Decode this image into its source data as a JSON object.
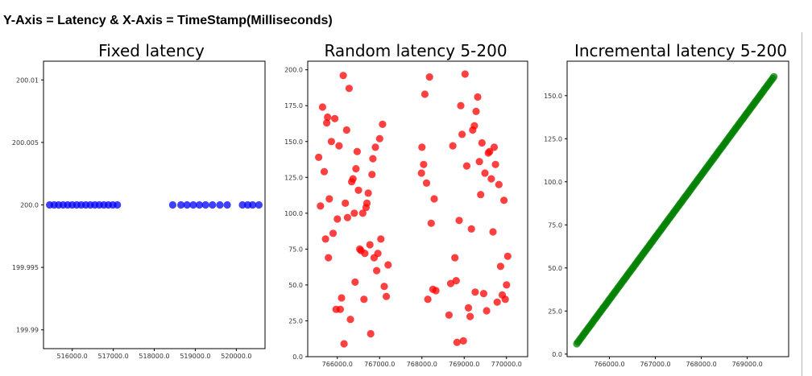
{
  "heading": "Y-Axis = Latency & X-Axis = TimeStamp(Milliseconds)",
  "chart_data": [
    {
      "type": "scatter",
      "title": "Fixed latency",
      "color": "#0000ff",
      "xlabel": "",
      "ylabel": "",
      "xlim": [
        515300,
        520700
      ],
      "ylim": [
        199.9885,
        200.0115
      ],
      "xticks": [
        516000,
        517000,
        518000,
        519000,
        520000
      ],
      "xtick_labels": [
        "516000.0",
        "517000.0",
        "518000.0",
        "519000.0",
        "520000.0"
      ],
      "yticks": [
        199.99,
        199.995,
        200.0,
        200.005,
        200.01
      ],
      "ytick_labels": [
        "199.99",
        "199.995",
        "200.0",
        "200.005",
        "200.01"
      ],
      "x": [
        515450,
        515560,
        515670,
        515780,
        515890,
        516000,
        516110,
        516220,
        516330,
        516440,
        516550,
        516660,
        516770,
        516880,
        516990,
        517100,
        518450,
        518650,
        518800,
        518950,
        519100,
        519250,
        519420,
        519600,
        519780,
        520150,
        520280,
        520400,
        520550
      ],
      "y": [
        200.0,
        200.0,
        200.0,
        200.0,
        200.0,
        200.0,
        200.0,
        200.0,
        200.0,
        200.0,
        200.0,
        200.0,
        200.0,
        200.0,
        200.0,
        200.0,
        200.0,
        200.0,
        200.0,
        200.0,
        200.0,
        200.0,
        200.0,
        200.0,
        200.0,
        200.0,
        200.0,
        200.0,
        200.0
      ]
    },
    {
      "type": "scatter",
      "title": "Random latency 5-200",
      "color": "#ff0000",
      "xlabel": "",
      "ylabel": "",
      "xlim": [
        765300,
        770500
      ],
      "ylim": [
        0,
        206
      ],
      "xticks": [
        766000,
        767000,
        768000,
        769000,
        770000
      ],
      "xtick_labels": [
        "766000.0",
        "767000.0",
        "768000.0",
        "769000.0",
        "770000.0"
      ],
      "yticks": [
        0,
        25,
        50,
        75,
        100,
        125,
        150,
        175,
        200
      ],
      "ytick_labels": [
        "0.0",
        "25.0",
        "50.0",
        "75.0",
        "100.0",
        "125.0",
        "150.0",
        "175.0",
        "200.0"
      ],
      "x": [
        765560,
        765600,
        765650,
        765690,
        765720,
        765750,
        765770,
        765790,
        765810,
        765860,
        765900,
        765940,
        765970,
        766000,
        766040,
        766070,
        766100,
        766140,
        766160,
        766190,
        766220,
        766240,
        766280,
        766310,
        766340,
        766370,
        766400,
        766420,
        766440,
        766470,
        766500,
        766530,
        766560,
        766600,
        766630,
        766650,
        766680,
        766700,
        766730,
        766770,
        766790,
        766820,
        766840,
        766870,
        766900,
        766930,
        766960,
        767000,
        767030,
        767070,
        767110,
        767160,
        767200,
        767990,
        768000,
        768040,
        768070,
        768110,
        768140,
        768180,
        768220,
        768260,
        768290,
        768330,
        768640,
        768680,
        768730,
        768780,
        768810,
        768830,
        768880,
        768920,
        768950,
        768980,
        769020,
        769060,
        769100,
        769140,
        769170,
        769200,
        769240,
        769260,
        769280,
        769320,
        769360,
        769390,
        769420,
        769460,
        769490,
        769530,
        769570,
        769600,
        769640,
        769680,
        769710,
        769740,
        769780,
        769820,
        769860,
        769900,
        769940,
        769970,
        770000,
        770030
      ],
      "y": [
        139,
        105,
        174,
        129,
        82,
        163,
        167,
        69,
        110,
        150,
        86,
        166,
        33,
        96,
        147,
        33,
        41,
        196,
        9,
        107,
        158,
        97,
        187,
        26,
        122,
        124,
        100,
        52,
        131,
        143,
        116,
        75,
        74,
        100,
        40,
        72,
        104,
        107,
        114,
        78,
        16,
        127,
        138,
        69,
        146,
        60,
        72,
        152,
        82,
        162,
        49,
        42,
        64,
        128,
        146,
        134,
        183,
        121,
        40,
        195,
        93,
        47,
        110,
        46,
        29,
        51,
        147,
        69,
        53,
        10,
        95,
        175,
        155,
        11,
        197,
        133,
        34,
        28,
        89,
        158,
        161,
        45,
        171,
        181,
        136,
        113,
        149,
        44,
        128,
        32,
        142,
        143,
        124,
        87,
        146,
        134,
        38,
        120,
        63,
        43,
        109,
        40,
        50,
        70
      ],
      "y_note": ""
    },
    {
      "type": "scatter",
      "title": "Incremental latency 5-200",
      "color": "#008000",
      "xlabel": "",
      "ylabel": "",
      "xlim": [
        765080,
        769900
      ],
      "ylim": [
        -1.5,
        170
      ],
      "xticks": [
        766000,
        767000,
        768000,
        769000
      ],
      "xtick_labels": [
        "766000.0",
        "767000.0",
        "768000.0",
        "769000.0"
      ],
      "yticks": [
        0,
        25,
        50,
        75,
        100,
        125,
        150
      ],
      "ytick_labels": [
        "0.0",
        "25.0",
        "50.0",
        "75.0",
        "100.0",
        "125.0",
        "150.0"
      ],
      "line_start": [
        765290,
        6
      ],
      "line_end": [
        769580,
        161
      ],
      "point_count": 150
    }
  ]
}
